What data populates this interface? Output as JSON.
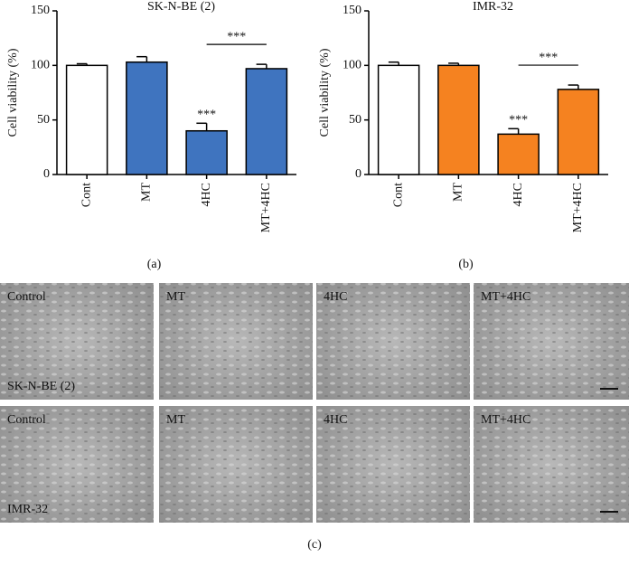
{
  "chart_data": [
    {
      "type": "bar",
      "title": "SK-N-BE (2)",
      "y_label": "Cell viability (%)",
      "caption": "(a)",
      "categories": [
        "Cont",
        "MT",
        "4HC",
        "MT+4HC"
      ],
      "values": [
        100,
        103,
        40,
        97
      ],
      "errors": [
        1.5,
        5,
        7,
        4
      ],
      "colors": [
        "#ffffff",
        "#3f74bf",
        "#3f74bf",
        "#3f74bf"
      ],
      "significance": [
        null,
        null,
        "***",
        null
      ],
      "bracket": {
        "text": "***",
        "from": "4HC",
        "to": "MT+4HC"
      },
      "ylim": [
        0,
        150
      ],
      "yticks": [
        0,
        50,
        100,
        150
      ]
    },
    {
      "type": "bar",
      "title": "IMR-32",
      "y_label": "Cell viability (%)",
      "caption": "(b)",
      "categories": [
        "Cont",
        "MT",
        "4HC",
        "MT+4HC"
      ],
      "values": [
        100,
        100,
        37,
        78
      ],
      "errors": [
        3,
        2,
        5,
        4
      ],
      "colors": [
        "#ffffff",
        "#f58220",
        "#f58220",
        "#f58220"
      ],
      "significance": [
        null,
        null,
        "***",
        null
      ],
      "bracket": {
        "text": "***",
        "from": "4HC",
        "to": "MT+4HC"
      },
      "ylim": [
        0,
        150
      ],
      "yticks": [
        0,
        50,
        100,
        150
      ]
    }
  ],
  "micrographs": {
    "caption": "(c)",
    "rows": [
      {
        "label": "SK-N-BE (2)",
        "panels": [
          "Control",
          "MT",
          "4HC",
          "MT+4HC"
        ]
      },
      {
        "label": "IMR-32",
        "panels": [
          "Control",
          "MT",
          "4HC",
          "MT+4HC"
        ]
      }
    ]
  }
}
